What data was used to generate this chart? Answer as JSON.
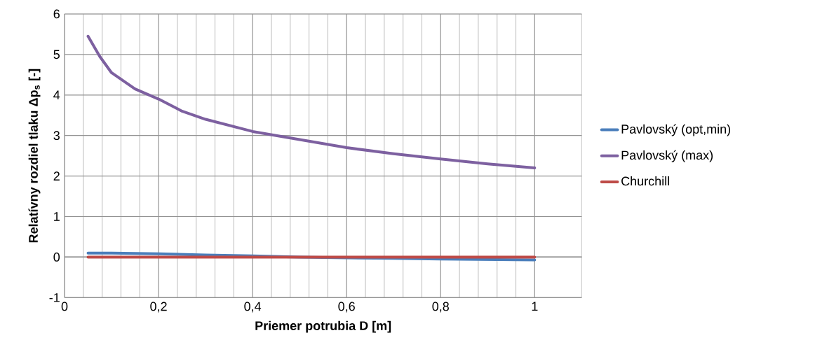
{
  "chart_data": {
    "type": "line",
    "xlabel": "Priemer potrubia D [m]",
    "ylabel": "Relatívny rozdiel tlaku Δp$_{s}$ [-]",
    "xlim": [
      0,
      1.1
    ],
    "ylim": [
      -1,
      6
    ],
    "xticks": [
      0,
      {
        "value": 0.2,
        "label": "0,2"
      },
      {
        "value": 0.4,
        "label": "0,4"
      },
      {
        "value": 0.6,
        "label": "0,6"
      },
      {
        "value": 0.8,
        "label": "0,8"
      },
      1
    ],
    "yticks": [
      -1,
      0,
      1,
      2,
      3,
      4,
      5,
      6
    ],
    "grid": true,
    "legend": "right",
    "marker": "none",
    "line_style": "solid",
    "series": [
      {
        "name": "Pavlovský (opt,min)",
        "color": "#4a7ebb",
        "x": [
          0.05,
          0.1,
          0.2,
          0.3,
          0.4,
          0.5,
          0.6,
          0.7,
          0.8,
          0.9,
          1.0
        ],
        "values": [
          0.1,
          0.1,
          0.08,
          0.05,
          0.03,
          0.0,
          -0.02,
          -0.03,
          -0.05,
          -0.06,
          -0.07
        ]
      },
      {
        "name": "Pavlovský (max)",
        "color": "#7d60a0",
        "x": [
          0.05,
          0.075,
          0.1,
          0.15,
          0.2,
          0.25,
          0.3,
          0.4,
          0.5,
          0.6,
          0.7,
          0.8,
          0.9,
          1.0
        ],
        "values": [
          5.45,
          4.95,
          4.55,
          4.15,
          3.9,
          3.6,
          3.4,
          3.1,
          2.9,
          2.7,
          2.55,
          2.42,
          2.3,
          2.2
        ]
      },
      {
        "name": "Churchill",
        "color": "#be4b48",
        "x": [
          0.05,
          0.5,
          1.0
        ],
        "values": [
          0,
          0,
          0
        ]
      }
    ]
  }
}
